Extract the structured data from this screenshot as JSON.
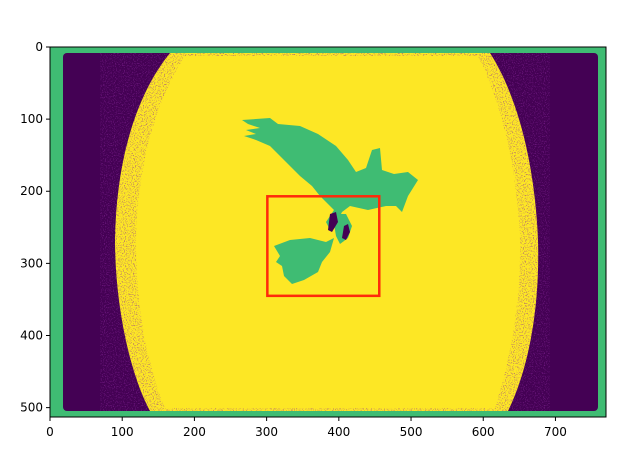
{
  "chart_data": {
    "type": "heatmap",
    "title": "",
    "xlabel": "",
    "ylabel": "",
    "image_width": 770,
    "image_height": 513,
    "xlim": [
      0,
      770
    ],
    "ylim": [
      513,
      0
    ],
    "x_ticks": [
      0,
      100,
      200,
      300,
      400,
      500,
      600,
      700
    ],
    "y_ticks": [
      0,
      100,
      200,
      300,
      400,
      500
    ],
    "grid": false,
    "legend": "none",
    "colormap": {
      "background_dark": "#440154",
      "mid_green": "#3fbc73",
      "bright_yellow": "#fde725"
    },
    "annotation_box": {
      "x": [
        301,
        456
      ],
      "y": [
        207,
        345
      ],
      "color": "#ff2a0a"
    }
  }
}
